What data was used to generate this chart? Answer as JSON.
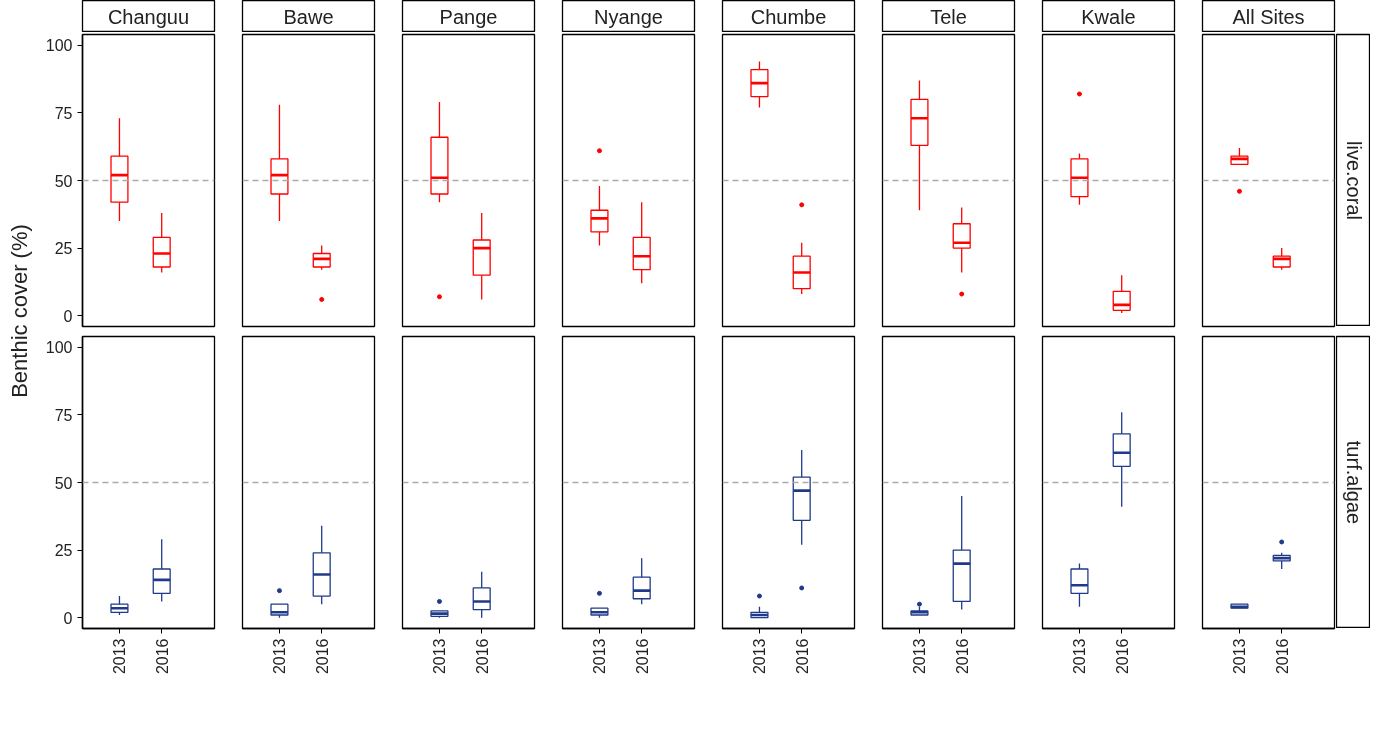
{
  "chart_data": [
    {
      "type": "box",
      "title": "Changuu",
      "ylabel": "Benthic cover (%)",
      "categories": [
        "2013",
        "2016"
      ],
      "ylim": [
        -4,
        104
      ],
      "yticks": [
        0,
        25,
        50,
        75,
        100
      ],
      "tick_labels": "y",
      "grid": false,
      "ref_lines": [
        {
          "axis": "y",
          "value": 50,
          "color": "#aaaaaa",
          "line_style": "dashed"
        }
      ],
      "series": [
        {
          "color": "#ff0000",
          "boxes": [
            {
              "low": 35,
              "q1": 42,
              "median": 52,
              "q3": 59,
              "high": 73
            },
            {
              "low": 16,
              "q1": 18,
              "median": 23,
              "q3": 29,
              "high": 38
            }
          ]
        }
      ]
    },
    {
      "type": "box",
      "title": "Bawe",
      "categories": [
        "2013",
        "2016"
      ],
      "ylim": [
        -4,
        104
      ],
      "yticks": [
        0,
        25,
        50,
        75,
        100
      ],
      "tick_labels": false,
      "grid": false,
      "ref_lines": [
        {
          "axis": "y",
          "value": 50,
          "color": "#aaaaaa",
          "line_style": "dashed"
        }
      ],
      "series": [
        {
          "color": "#ff0000",
          "boxes": [
            {
              "low": 35,
              "q1": 45,
              "median": 52,
              "q3": 58,
              "high": 78
            },
            {
              "low": 17,
              "q1": 18,
              "median": 21,
              "q3": 23,
              "high": 26,
              "outliers": [
                6
              ]
            }
          ]
        }
      ]
    },
    {
      "type": "box",
      "title": "Pange",
      "categories": [
        "2013",
        "2016"
      ],
      "ylim": [
        -4,
        104
      ],
      "yticks": [
        0,
        25,
        50,
        75,
        100
      ],
      "tick_labels": false,
      "grid": false,
      "ref_lines": [
        {
          "axis": "y",
          "value": 50,
          "color": "#aaaaaa",
          "line_style": "dashed"
        }
      ],
      "series": [
        {
          "color": "#ff0000",
          "boxes": [
            {
              "low": 42,
              "q1": 45,
              "median": 51,
              "q3": 66,
              "high": 79,
              "outliers": [
                7
              ]
            },
            {
              "low": 6,
              "q1": 15,
              "median": 25,
              "q3": 28,
              "high": 38
            }
          ]
        }
      ]
    },
    {
      "type": "box",
      "title": "Nyange",
      "categories": [
        "2013",
        "2016"
      ],
      "ylim": [
        -4,
        104
      ],
      "yticks": [
        0,
        25,
        50,
        75,
        100
      ],
      "tick_labels": false,
      "grid": false,
      "ref_lines": [
        {
          "axis": "y",
          "value": 50,
          "color": "#aaaaaa",
          "line_style": "dashed"
        }
      ],
      "series": [
        {
          "color": "#ff0000",
          "boxes": [
            {
              "low": 26,
              "q1": 31,
              "median": 36,
              "q3": 39,
              "high": 48,
              "outliers": [
                61
              ]
            },
            {
              "low": 12,
              "q1": 17,
              "median": 22,
              "q3": 29,
              "high": 42
            }
          ]
        }
      ]
    },
    {
      "type": "box",
      "title": "Chumbe",
      "categories": [
        "2013",
        "2016"
      ],
      "ylim": [
        -4,
        104
      ],
      "yticks": [
        0,
        25,
        50,
        75,
        100
      ],
      "tick_labels": false,
      "grid": false,
      "ref_lines": [
        {
          "axis": "y",
          "value": 50,
          "color": "#aaaaaa",
          "line_style": "dashed"
        }
      ],
      "series": [
        {
          "color": "#ff0000",
          "boxes": [
            {
              "low": 77,
              "q1": 81,
              "median": 86,
              "q3": 91,
              "high": 94
            },
            {
              "low": 8,
              "q1": 10,
              "median": 16,
              "q3": 22,
              "high": 27,
              "outliers": [
                41
              ]
            }
          ]
        }
      ]
    },
    {
      "type": "box",
      "title": "Tele",
      "categories": [
        "2013",
        "2016"
      ],
      "ylim": [
        -4,
        104
      ],
      "yticks": [
        0,
        25,
        50,
        75,
        100
      ],
      "tick_labels": false,
      "grid": false,
      "ref_lines": [
        {
          "axis": "y",
          "value": 50,
          "color": "#aaaaaa",
          "line_style": "dashed"
        }
      ],
      "series": [
        {
          "color": "#ff0000",
          "boxes": [
            {
              "low": 39,
              "q1": 63,
              "median": 73,
              "q3": 80,
              "high": 87
            },
            {
              "low": 16,
              "q1": 25,
              "median": 27,
              "q3": 34,
              "high": 40,
              "outliers": [
                8
              ]
            }
          ]
        }
      ]
    },
    {
      "type": "box",
      "title": "Kwale",
      "categories": [
        "2013",
        "2016"
      ],
      "ylim": [
        -4,
        104
      ],
      "yticks": [
        0,
        25,
        50,
        75,
        100
      ],
      "tick_labels": false,
      "grid": false,
      "ref_lines": [
        {
          "axis": "y",
          "value": 50,
          "color": "#aaaaaa",
          "line_style": "dashed"
        }
      ],
      "series": [
        {
          "color": "#ff0000",
          "boxes": [
            {
              "low": 41,
              "q1": 44,
              "median": 51,
              "q3": 58,
              "high": 60,
              "outliers": [
                82
              ]
            },
            {
              "low": 1,
              "q1": 2,
              "median": 4,
              "q3": 9,
              "high": 15
            }
          ]
        }
      ]
    },
    {
      "type": "box",
      "title": "All Sites",
      "subtitle": "live.coral",
      "categories": [
        "2013",
        "2016"
      ],
      "ylim": [
        -4,
        104
      ],
      "yticks": [
        0,
        25,
        50,
        75,
        100
      ],
      "tick_labels": false,
      "grid": false,
      "ref_lines": [
        {
          "axis": "y",
          "value": 50,
          "color": "#aaaaaa",
          "line_style": "dashed"
        }
      ],
      "series": [
        {
          "color": "#ff0000",
          "boxes": [
            {
              "low": 56,
              "q1": 56,
              "median": 58,
              "q3": 59,
              "high": 62,
              "outliers": [
                46
              ]
            },
            {
              "low": 17,
              "q1": 18,
              "median": 21,
              "q3": 22,
              "high": 25
            }
          ]
        }
      ]
    },
    {
      "type": "box",
      "categories": [
        "2013",
        "2016"
      ],
      "ylim": [
        -4,
        104
      ],
      "yticks": [
        0,
        25,
        50,
        75,
        100
      ],
      "grid": false,
      "ref_lines": [
        {
          "axis": "y",
          "value": 50,
          "color": "#aaaaaa",
          "line_style": "dashed"
        }
      ],
      "series": [
        {
          "color": "#1f3a8a",
          "boxes": [
            {
              "low": 1,
              "q1": 2,
              "median": 3.5,
              "q3": 5,
              "high": 8
            },
            {
              "low": 6,
              "q1": 9,
              "median": 14,
              "q3": 18,
              "high": 29
            }
          ]
        }
      ]
    },
    {
      "type": "box",
      "categories": [
        "2013",
        "2016"
      ],
      "ylim": [
        -4,
        104
      ],
      "yticks": [
        0,
        25,
        50,
        75,
        100
      ],
      "tick_labels": "x",
      "grid": false,
      "ref_lines": [
        {
          "axis": "y",
          "value": 50,
          "color": "#aaaaaa",
          "line_style": "dashed"
        }
      ],
      "series": [
        {
          "color": "#1f3a8a",
          "boxes": [
            {
              "low": 0,
              "q1": 1,
              "median": 2,
              "q3": 5,
              "high": 5,
              "outliers": [
                10
              ]
            },
            {
              "low": 5,
              "q1": 8,
              "median": 16,
              "q3": 24,
              "high": 34
            }
          ]
        }
      ]
    },
    {
      "type": "box",
      "categories": [
        "2013",
        "2016"
      ],
      "ylim": [
        -4,
        104
      ],
      "yticks": [
        0,
        25,
        50,
        75,
        100
      ],
      "tick_labels": "x",
      "grid": false,
      "ref_lines": [
        {
          "axis": "y",
          "value": 50,
          "color": "#aaaaaa",
          "line_style": "dashed"
        }
      ],
      "series": [
        {
          "color": "#1f3a8a",
          "boxes": [
            {
              "low": 0,
              "q1": 0.5,
              "median": 1.5,
              "q3": 2.5,
              "high": 2.5,
              "outliers": [
                6
              ]
            },
            {
              "low": 0,
              "q1": 3,
              "median": 6,
              "q3": 11,
              "high": 17
            }
          ]
        }
      ]
    },
    {
      "type": "box",
      "categories": [
        "2013",
        "2016"
      ],
      "ylim": [
        -4,
        104
      ],
      "yticks": [
        0,
        25,
        50,
        75,
        100
      ],
      "tick_labels": "x",
      "grid": false,
      "ref_lines": [
        {
          "axis": "y",
          "value": 50,
          "color": "#aaaaaa",
          "line_style": "dashed"
        }
      ],
      "series": [
        {
          "color": "#1f3a8a",
          "boxes": [
            {
              "low": 0,
              "q1": 1,
              "median": 2,
              "q3": 3.5,
              "high": 3.5,
              "outliers": [
                9
              ]
            },
            {
              "low": 5,
              "q1": 7,
              "median": 10,
              "q3": 15,
              "high": 22
            }
          ]
        }
      ]
    },
    {
      "type": "box",
      "categories": [
        "2013",
        "2016"
      ],
      "ylim": [
        -4,
        104
      ],
      "yticks": [
        0,
        25,
        50,
        75,
        100
      ],
      "tick_labels": "x",
      "grid": false,
      "ref_lines": [
        {
          "axis": "y",
          "value": 50,
          "color": "#aaaaaa",
          "line_style": "dashed"
        }
      ],
      "series": [
        {
          "color": "#1f3a8a",
          "boxes": [
            {
              "low": 0,
              "q1": 0,
              "median": 1,
              "q3": 2,
              "high": 4,
              "outliers": [
                8
              ]
            },
            {
              "low": 27,
              "q1": 36,
              "median": 47,
              "q3": 52,
              "high": 62,
              "outliers": [
                11
              ]
            }
          ]
        }
      ]
    },
    {
      "type": "box",
      "categories": [
        "2013",
        "2016"
      ],
      "ylim": [
        -4,
        104
      ],
      "yticks": [
        0,
        25,
        50,
        75,
        100
      ],
      "tick_labels": "x",
      "grid": false,
      "ref_lines": [
        {
          "axis": "y",
          "value": 50,
          "color": "#aaaaaa",
          "line_style": "dashed"
        }
      ],
      "series": [
        {
          "color": "#1f3a8a",
          "boxes": [
            {
              "low": 1,
              "q1": 1,
              "median": 2,
              "q3": 2.5,
              "high": 4,
              "outliers": [
                5
              ]
            },
            {
              "low": 3,
              "q1": 6,
              "median": 20,
              "q3": 25,
              "high": 45
            }
          ]
        }
      ]
    },
    {
      "type": "box",
      "categories": [
        "2013",
        "2016"
      ],
      "ylim": [
        -4,
        104
      ],
      "yticks": [
        0,
        25,
        50,
        75,
        100
      ],
      "tick_labels": "x",
      "grid": false,
      "ref_lines": [
        {
          "axis": "y",
          "value": 50,
          "color": "#aaaaaa",
          "line_style": "dashed"
        }
      ],
      "series": [
        {
          "color": "#1f3a8a",
          "boxes": [
            {
              "low": 4,
              "q1": 9,
              "median": 12,
              "q3": 18,
              "high": 20
            },
            {
              "low": 41,
              "q1": 56,
              "median": 61,
              "q3": 68,
              "high": 76
            }
          ]
        }
      ]
    },
    {
      "type": "box",
      "subtitle": "turf.algae",
      "categories": [
        "2013",
        "2016"
      ],
      "ylim": [
        -4,
        104
      ],
      "yticks": [
        0,
        25,
        50,
        75,
        100
      ],
      "tick_labels": "x",
      "grid": false,
      "ref_lines": [
        {
          "axis": "y",
          "value": 50,
          "color": "#aaaaaa",
          "line_style": "dashed"
        }
      ],
      "series": [
        {
          "color": "#1f3a8a",
          "boxes": [
            {
              "low": 3.5,
              "q1": 3.5,
              "median": 4,
              "q3": 5,
              "high": 5
            },
            {
              "low": 18,
              "q1": 21,
              "median": 22,
              "q3": 23,
              "high": 24,
              "outliers": [
                28
              ]
            }
          ]
        }
      ]
    }
  ]
}
